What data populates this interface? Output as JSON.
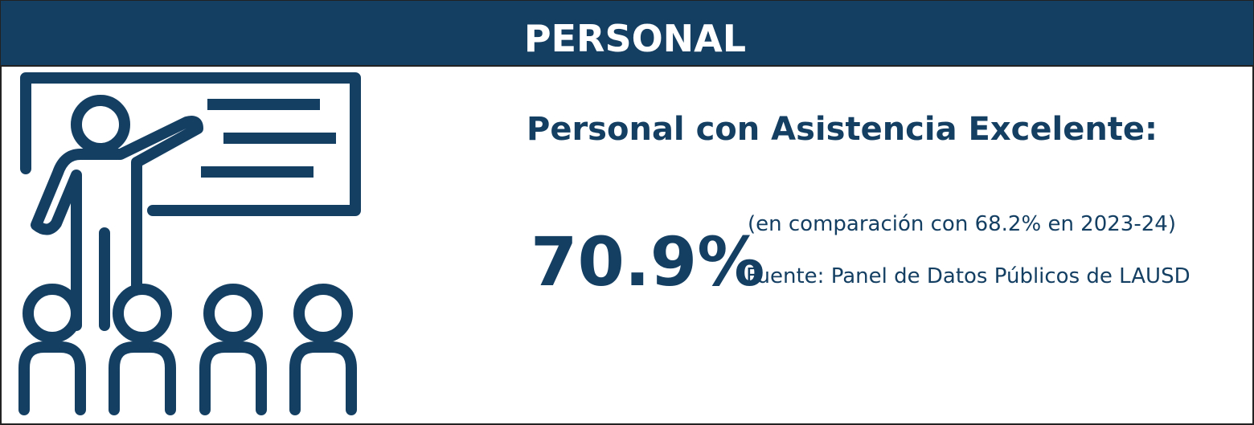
{
  "header": {
    "title": "PERSONAL"
  },
  "metric": {
    "label": "Personal con Asistencia Excelente:",
    "value": "70.9%",
    "comparison": "(en comparación con 68.2% en 2023-24)",
    "source": "Fuente: Panel de Datos Públicos de LAUSD"
  }
}
